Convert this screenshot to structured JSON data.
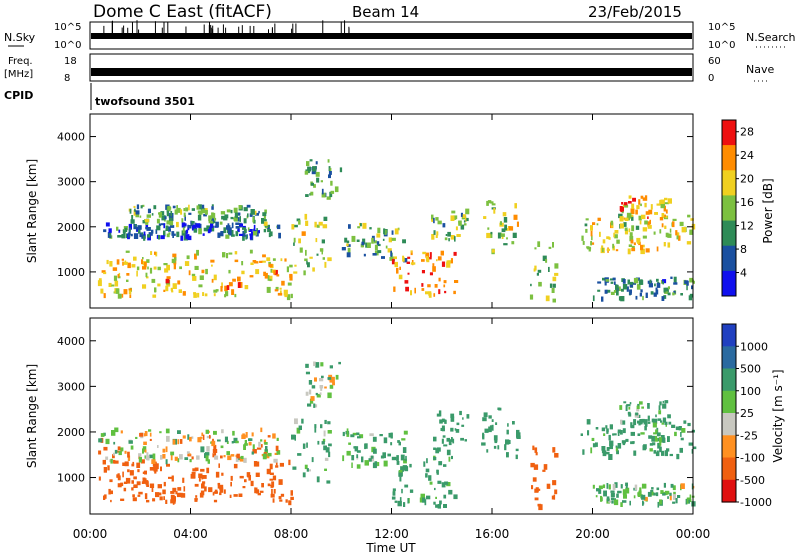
{
  "header": {
    "station": "Dome C East (fitACF)",
    "beam": "Beam 14",
    "date": "23/Feb/2015"
  },
  "top_panels": {
    "nsky_label": "N.Sky",
    "nsky_ticks": [
      "10^5",
      "10^0"
    ],
    "nsearch_label": "N.Search",
    "nsearch_ticks": [
      "10^5",
      "10^0"
    ],
    "freq_label": "Freq.",
    "freq_unit": "[MHz]",
    "freq_ticks": [
      "18",
      "8"
    ],
    "nave_label": "Nave",
    "nave_ticks": [
      "60",
      "0"
    ],
    "cpid_label": "CPID",
    "cpid_value": "twofsound 3501"
  },
  "x_axis": {
    "label": "Time UT",
    "ticks": [
      "00:00",
      "04:00",
      "08:00",
      "12:00",
      "16:00",
      "20:00",
      "00:00"
    ],
    "range_hours": [
      0,
      24
    ]
  },
  "chart_data": [
    {
      "type": "heatmap",
      "panel": "power",
      "ylabel": "Slant Range [km]",
      "y_ticks": [
        "1000",
        "2000",
        "3000",
        "4000"
      ],
      "ylim": [
        200,
        4500
      ],
      "colorbar": {
        "label": "Power [dB]",
        "ticks": [
          "4",
          "8",
          "12",
          "16",
          "20",
          "24",
          "28"
        ],
        "range": [
          0,
          30
        ],
        "colors": [
          "#1010ee",
          "#1a50a0",
          "#2e8b57",
          "#7cc040",
          "#f0d020",
          "#ff8c00",
          "#ee1010"
        ]
      },
      "blobs": [
        {
          "t": 0.3,
          "t2": 8.0,
          "r1": 500,
          "r2": 1500,
          "v": 20
        },
        {
          "t": 0.5,
          "t2": 7.5,
          "r1": 1800,
          "r2": 2100,
          "v": 8
        },
        {
          "t": 1.5,
          "t2": 7.0,
          "r1": 2100,
          "r2": 2500,
          "v": 12
        },
        {
          "t": 8.0,
          "t2": 9.5,
          "r1": 1000,
          "r2": 2300,
          "v": 16
        },
        {
          "t": 8.5,
          "t2": 10.0,
          "r1": 2600,
          "r2": 3600,
          "v": 10
        },
        {
          "t": 10.0,
          "t2": 12.5,
          "r1": 1300,
          "r2": 2100,
          "v": 12
        },
        {
          "t": 12.0,
          "t2": 14.5,
          "r1": 500,
          "r2": 1500,
          "v": 24
        },
        {
          "t": 13.5,
          "t2": 15.0,
          "r1": 1700,
          "r2": 2500,
          "v": 14
        },
        {
          "t": 15.5,
          "t2": 17.0,
          "r1": 1500,
          "r2": 2600,
          "v": 16
        },
        {
          "t": 17.5,
          "t2": 18.5,
          "r1": 400,
          "r2": 1700,
          "v": 14
        },
        {
          "t": 19.5,
          "t2": 24.0,
          "r1": 1500,
          "r2": 2300,
          "v": 18
        },
        {
          "t": 20.0,
          "t2": 24.0,
          "r1": 450,
          "r2": 900,
          "v": 10
        },
        {
          "t": 21.0,
          "t2": 23.0,
          "r1": 2200,
          "r2": 2700,
          "v": 22
        }
      ]
    },
    {
      "type": "heatmap",
      "panel": "velocity",
      "ylabel": "Slant Range [km]",
      "y_ticks": [
        "1000",
        "2000",
        "3000",
        "4000"
      ],
      "ylim": [
        200,
        4500
      ],
      "colorbar": {
        "label": "Velocity [m s⁻¹]",
        "ticks": [
          "1000",
          "500",
          "100",
          "25",
          "-25",
          "-100",
          "-500",
          "-1000"
        ],
        "range": [
          -1000,
          1000
        ],
        "colors": [
          "#2040c0",
          "#2a6aa0",
          "#3a9a6a",
          "#60c040",
          "#c8c8c0",
          "#ff9020",
          "#f06010",
          "#e01010"
        ]
      },
      "blobs": [
        {
          "t": 0.3,
          "t2": 8.0,
          "r1": 500,
          "r2": 1400,
          "v": -300
        },
        {
          "t": 0.3,
          "t2": 7.5,
          "r1": 1400,
          "r2": 2100,
          "v": 0
        },
        {
          "t": 8.0,
          "t2": 9.5,
          "r1": 900,
          "r2": 2300,
          "v": 120
        },
        {
          "t": 8.5,
          "t2": 10.0,
          "r1": 2600,
          "r2": 3600,
          "v": 80
        },
        {
          "t": 10.0,
          "t2": 12.5,
          "r1": 1200,
          "r2": 2100,
          "v": 150
        },
        {
          "t": 12.0,
          "t2": 14.5,
          "r1": 400,
          "r2": 1500,
          "v": 200
        },
        {
          "t": 13.5,
          "t2": 15.0,
          "r1": 1600,
          "r2": 2500,
          "v": 300
        },
        {
          "t": 15.5,
          "t2": 17.0,
          "r1": 1500,
          "r2": 2600,
          "v": 250
        },
        {
          "t": 17.5,
          "t2": 18.5,
          "r1": 400,
          "r2": 1700,
          "v": -250
        },
        {
          "t": 19.5,
          "t2": 24.0,
          "r1": 1500,
          "r2": 2300,
          "v": 200
        },
        {
          "t": 20.0,
          "t2": 24.0,
          "r1": 450,
          "r2": 900,
          "v": 120
        },
        {
          "t": 21.0,
          "t2": 23.0,
          "r1": 2200,
          "r2": 2700,
          "v": 150
        }
      ]
    }
  ]
}
